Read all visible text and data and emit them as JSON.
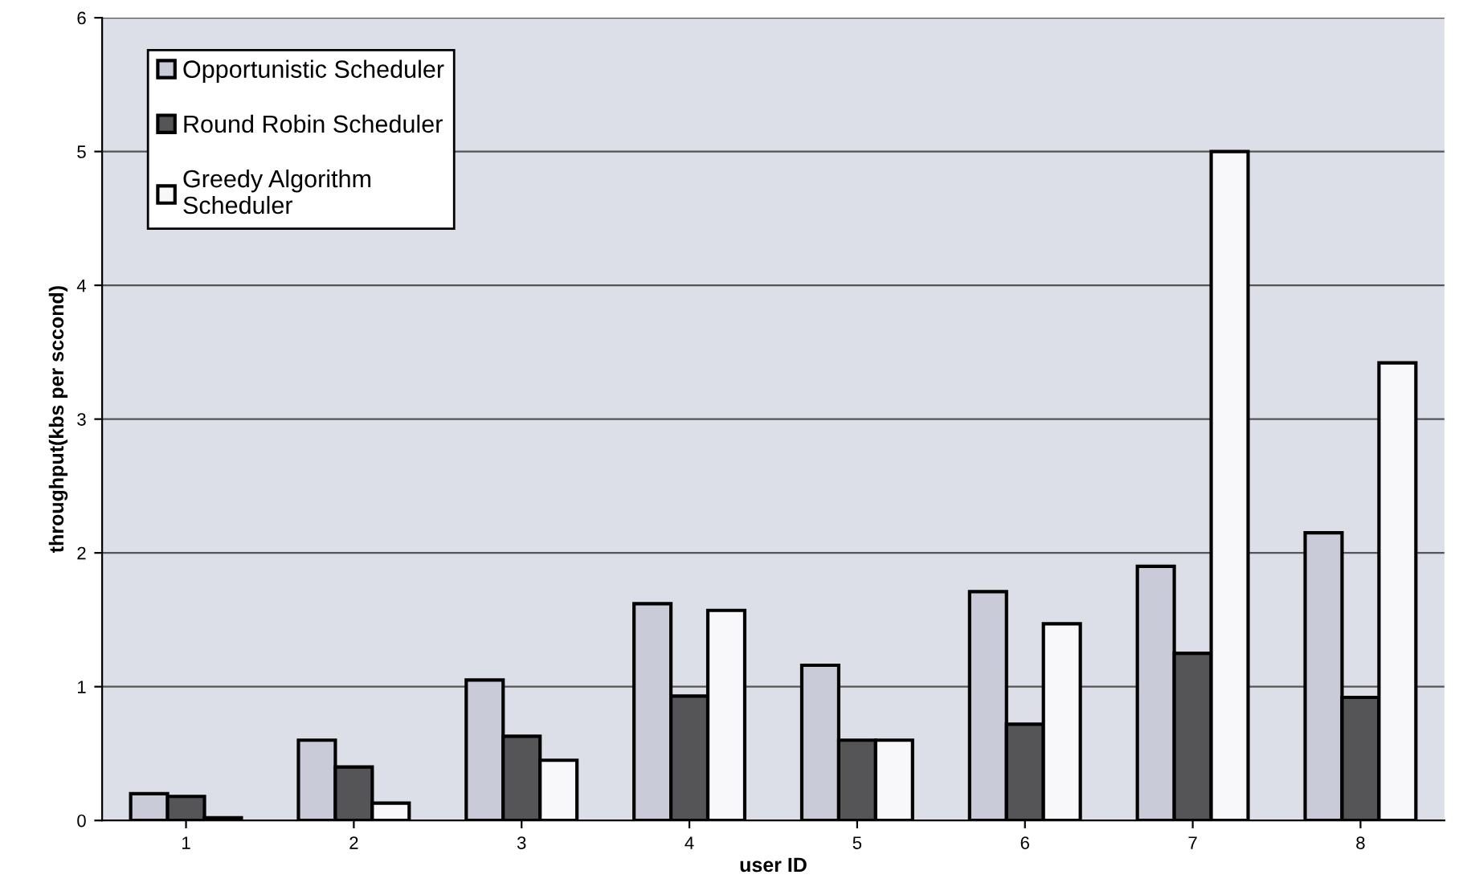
{
  "chart_data": {
    "type": "bar",
    "xlabel": "user ID",
    "ylabel": "throughput(kbs per sccond)",
    "categories": [
      "1",
      "2",
      "3",
      "4",
      "5",
      "6",
      "7",
      "8"
    ],
    "series": [
      {
        "name": "Opportunistic Scheduler",
        "color": "#c9cbd9",
        "values": [
          0.2,
          0.6,
          1.05,
          1.62,
          1.16,
          1.71,
          1.9,
          2.15
        ]
      },
      {
        "name": "Round Robin Scheduler",
        "color": "#555558",
        "values": [
          0.18,
          0.4,
          0.63,
          0.93,
          0.6,
          0.72,
          1.25,
          0.92
        ]
      },
      {
        "name": "Greedy Algorithm\nScheduler",
        "color": "#f8f8fa",
        "values": [
          0.02,
          0.13,
          0.45,
          1.57,
          0.6,
          1.47,
          5.0,
          3.42
        ]
      }
    ],
    "ylim": [
      0,
      6
    ],
    "yticks": [
      0,
      1,
      2,
      3,
      4,
      5,
      6
    ],
    "grid": "y",
    "legend": "top left"
  }
}
